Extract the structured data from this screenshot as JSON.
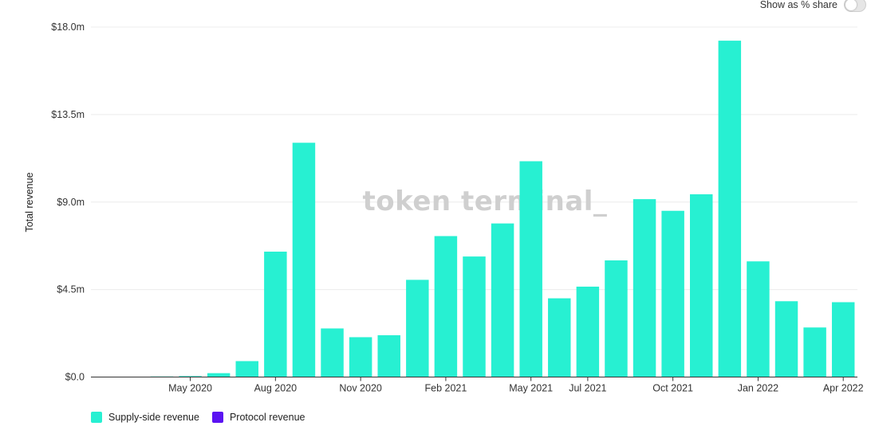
{
  "toggle": {
    "label": "Show as % share"
  },
  "legend": [
    {
      "label": "Supply-side revenue",
      "color": "#27F0D2"
    },
    {
      "label": "Protocol revenue",
      "color": "#5B13F2"
    }
  ],
  "watermark": "token terminal_",
  "chart_data": {
    "type": "bar",
    "ylabel": "Total revenue",
    "ylim": [
      0,
      18
    ],
    "yticks": [
      {
        "value": 0,
        "label": "$0.0"
      },
      {
        "value": 4.5,
        "label": "$4.5m"
      },
      {
        "value": 9,
        "label": "$9.0m"
      },
      {
        "value": 13.5,
        "label": "$13.5m"
      },
      {
        "value": 18,
        "label": "$18.0m"
      }
    ],
    "categories": [
      "Feb 2020",
      "Mar 2020",
      "Apr 2020",
      "May 2020",
      "Jun 2020",
      "Jul 2020",
      "Aug 2020",
      "Sep 2020",
      "Oct 2020",
      "Nov 2020",
      "Dec 2020",
      "Jan 2021",
      "Feb 2021",
      "Mar 2021",
      "Apr 2021",
      "May 2021",
      "Jun 2021",
      "Jul 2021",
      "Aug 2021",
      "Sep 2021",
      "Oct 2021",
      "Nov 2021",
      "Dec 2021",
      "Jan 2022",
      "Feb 2022",
      "Mar 2022",
      "Apr 2022"
    ],
    "xticks": [
      {
        "index": 3,
        "label": "May 2020"
      },
      {
        "index": 6,
        "label": "Aug 2020"
      },
      {
        "index": 9,
        "label": "Nov 2020"
      },
      {
        "index": 12,
        "label": "Feb 2021"
      },
      {
        "index": 15,
        "label": "May 2021"
      },
      {
        "index": 17,
        "label": "Jul 2021"
      },
      {
        "index": 20,
        "label": "Oct 2021"
      },
      {
        "index": 23,
        "label": "Jan 2022"
      },
      {
        "index": 26,
        "label": "Apr 2022"
      }
    ],
    "series": [
      {
        "name": "Supply-side revenue",
        "color": "#27F0D2",
        "values": [
          0.02,
          0.02,
          0.03,
          0.05,
          0.2,
          0.82,
          6.45,
          12.05,
          2.5,
          2.05,
          2.15,
          5.0,
          7.25,
          6.2,
          7.9,
          11.1,
          4.05,
          4.65,
          6.0,
          9.15,
          8.55,
          9.4,
          17.3,
          5.95,
          3.9,
          2.55,
          3.85
        ]
      },
      {
        "name": "Protocol revenue",
        "color": "#5B13F2",
        "values": [
          0,
          0,
          0,
          0,
          0,
          0,
          0,
          0,
          0,
          0,
          0,
          0,
          0,
          0,
          0,
          0,
          0,
          0,
          0,
          0,
          0,
          0,
          0,
          0,
          0,
          0,
          0
        ]
      }
    ],
    "grid": true,
    "legend_position": "bottom-left"
  }
}
